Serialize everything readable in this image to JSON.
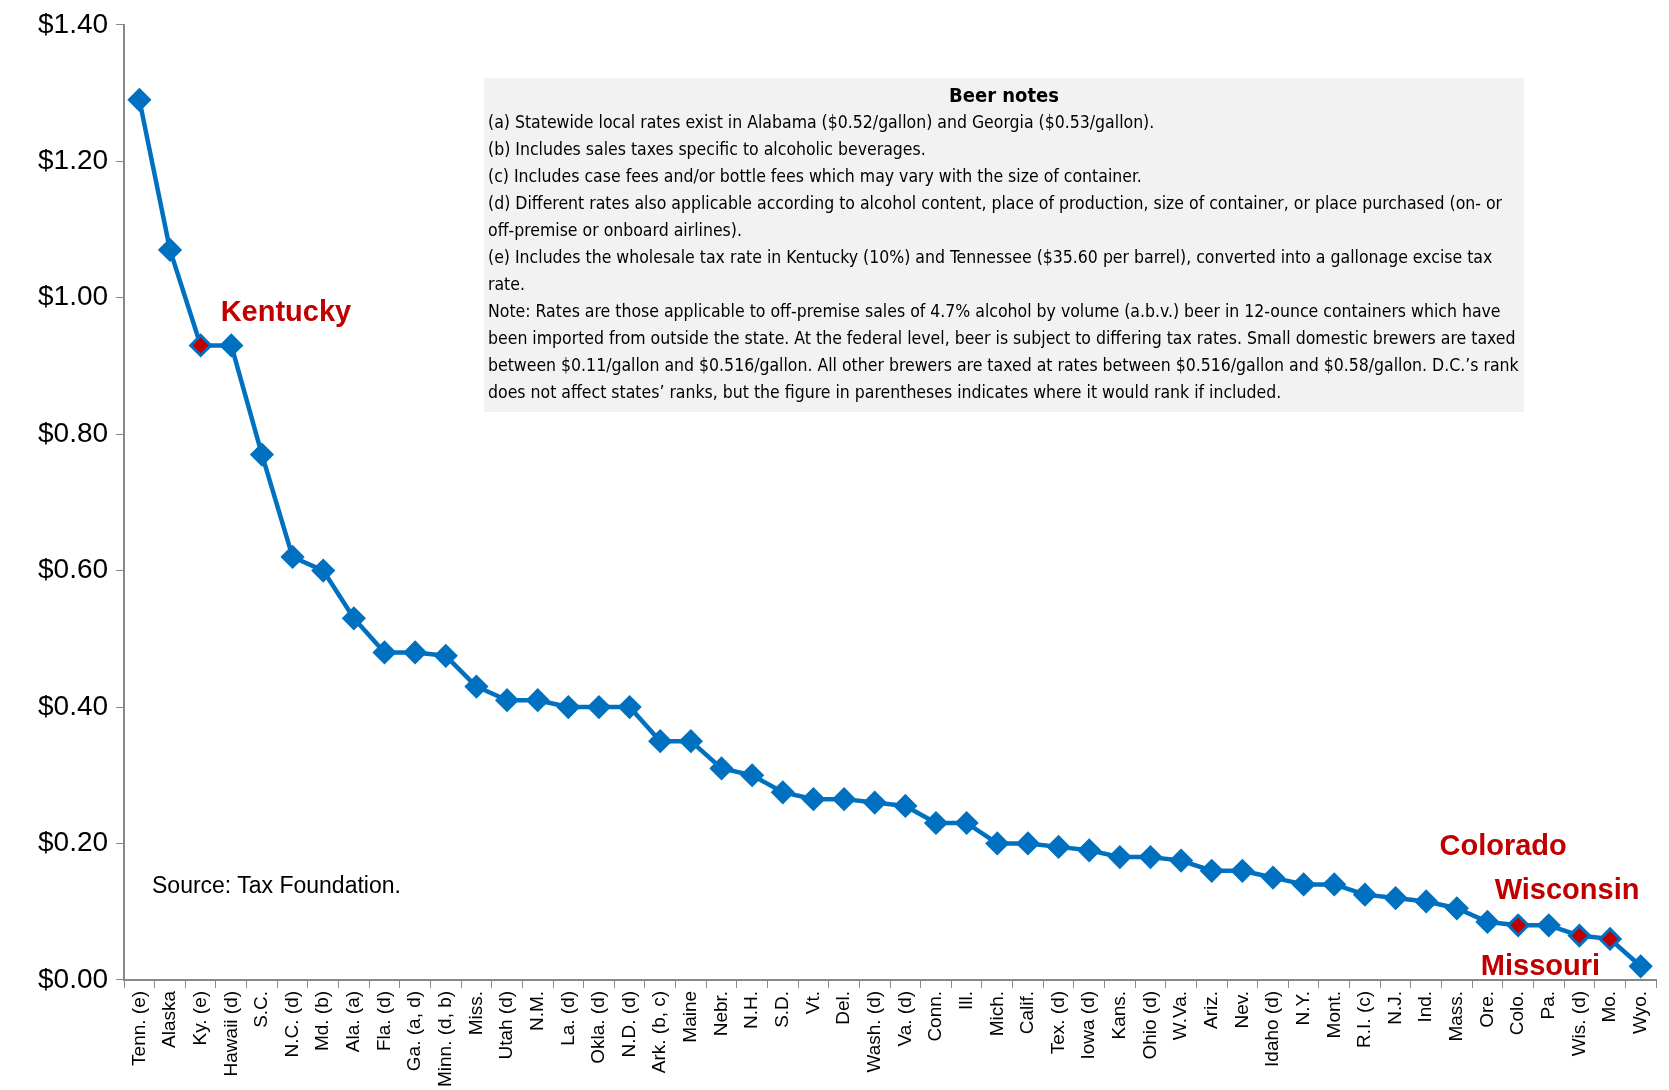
{
  "chart_data": {
    "type": "line",
    "categories": [
      "Tenn. (e)",
      "Alaska",
      "Ky. (e)",
      "Hawaii (d)",
      "S.C.",
      "N.C. (d)",
      "Md. (b)",
      "Ala. (a)",
      "Fla. (d)",
      "Ga. (a, d)",
      "Minn. (d, b)",
      "Miss.",
      "Utah (d)",
      "N.M.",
      "La. (d)",
      "Okla. (d)",
      "N.D. (d)",
      "Ark. (b, c)",
      "Maine",
      "Nebr.",
      "N.H.",
      "S.D.",
      "Vt.",
      "Del.",
      "Wash. (d)",
      "Va. (d)",
      "Conn.",
      "Ill.",
      "Mich.",
      "Calif.",
      "Tex. (d)",
      "Iowa (d)",
      "Kans.",
      "Ohio (d)",
      "W.Va.",
      "Ariz.",
      "Nev.",
      "Idaho (d)",
      "N.Y.",
      "Mont.",
      "R.I. (c)",
      "N.J.",
      "Ind.",
      "Mass.",
      "Ore.",
      "Colo.",
      "Pa.",
      "Wis. (d)",
      "Mo.",
      "Wyo."
    ],
    "series": [
      {
        "color": "#0070c0",
        "values": [
          1.29,
          1.07,
          0.93,
          0.93,
          0.77,
          0.62,
          0.6,
          0.53,
          0.48,
          0.48,
          0.475,
          0.43,
          0.41,
          0.41,
          0.4,
          0.4,
          0.4,
          0.35,
          0.35,
          0.31,
          0.3,
          0.275,
          0.265,
          0.265,
          0.26,
          0.255,
          0.23,
          0.23,
          0.2,
          0.2,
          0.195,
          0.19,
          0.18,
          0.18,
          0.175,
          0.16,
          0.16,
          0.15,
          0.14,
          0.14,
          0.125,
          0.12,
          0.115,
          0.105,
          0.085,
          0.08,
          0.08,
          0.065,
          0.06,
          0.02
        ],
        "colors": [
          "#0070c0",
          "#0070c0",
          "#c00000",
          "#0070c0",
          "#0070c0",
          "#0070c0",
          "#0070c0",
          "#0070c0",
          "#0070c0",
          "#0070c0",
          "#0070c0",
          "#0070c0",
          "#0070c0",
          "#0070c0",
          "#0070c0",
          "#0070c0",
          "#0070c0",
          "#0070c0",
          "#0070c0",
          "#0070c0",
          "#0070c0",
          "#0070c0",
          "#0070c0",
          "#0070c0",
          "#0070c0",
          "#0070c0",
          "#0070c0",
          "#0070c0",
          "#0070c0",
          "#0070c0",
          "#0070c0",
          "#0070c0",
          "#0070c0",
          "#0070c0",
          "#0070c0",
          "#0070c0",
          "#0070c0",
          "#0070c0",
          "#0070c0",
          "#0070c0",
          "#0070c0",
          "#0070c0",
          "#0070c0",
          "#0070c0",
          "#0070c0",
          "#c00000",
          "#0070c0",
          "#c00000",
          "#c00000",
          "#0070c0"
        ]
      }
    ],
    "ylim": [
      0,
      1.4
    ],
    "yticks": [
      {
        "value": 0,
        "label": "$0.00"
      },
      {
        "value": 0.2,
        "label": "$0.20"
      },
      {
        "value": 0.4,
        "label": "$0.40"
      },
      {
        "value": 0.6,
        "label": "$0.60"
      },
      {
        "value": 0.8,
        "label": "$0.80"
      },
      {
        "value": 1.0,
        "label": "$1.00"
      },
      {
        "value": 1.2,
        "label": "$1.20"
      },
      {
        "value": 1.4,
        "label": "$1.40"
      }
    ],
    "grid": false,
    "legend": false,
    "marker": "diamond",
    "line_style": "solid",
    "annotations": [
      {
        "text": "Kentucky",
        "x": "Ky. (e)",
        "y": 0.93
      },
      {
        "text": "Colorado",
        "x": "Colo.",
        "y": 0.08
      },
      {
        "text": "Wisconsin",
        "x": "Wis. (d)",
        "y": 0.065
      },
      {
        "text": "Missouri",
        "x": "Mo.",
        "y": 0.06
      },
      "Beer notes",
      "(a) Statewide local rates exist in Alabama ($0.52/gallon) and Georgia ($0.53/gallon).",
      "(b) Includes sales taxes specific to alcoholic beverages.",
      "(c) Includes case fees and/or bottle fees which may vary with the size of container.",
      "(d) Different rates also applicable according to alcohol content, place of production, size of container, or place purchased (on- or off-premise or onboard airlines).",
      "(e) Includes the wholesale tax rate in Kentucky (10%) and Tennessee ($35.60 per barrel), converted into a gallonage excise tax rate.",
      "Note: Rates are those applicable to off-premise sales of 4.7% alcohol by volume (a.b.v.) beer in 12-ounce containers which have been imported from outside the state. At the federal level, beer is subject to differing tax rates. Small domestic brewers are taxed between $0.11/gallon and $0.516/gallon. All other brewers are taxed at rates between $0.516/gallon and $0.58/gallon. D.C.’s rank does not affect states’ ranks, but the figure in parentheses indicates where it would rank if included.",
      "Source: Tax Foundation."
    ]
  }
}
